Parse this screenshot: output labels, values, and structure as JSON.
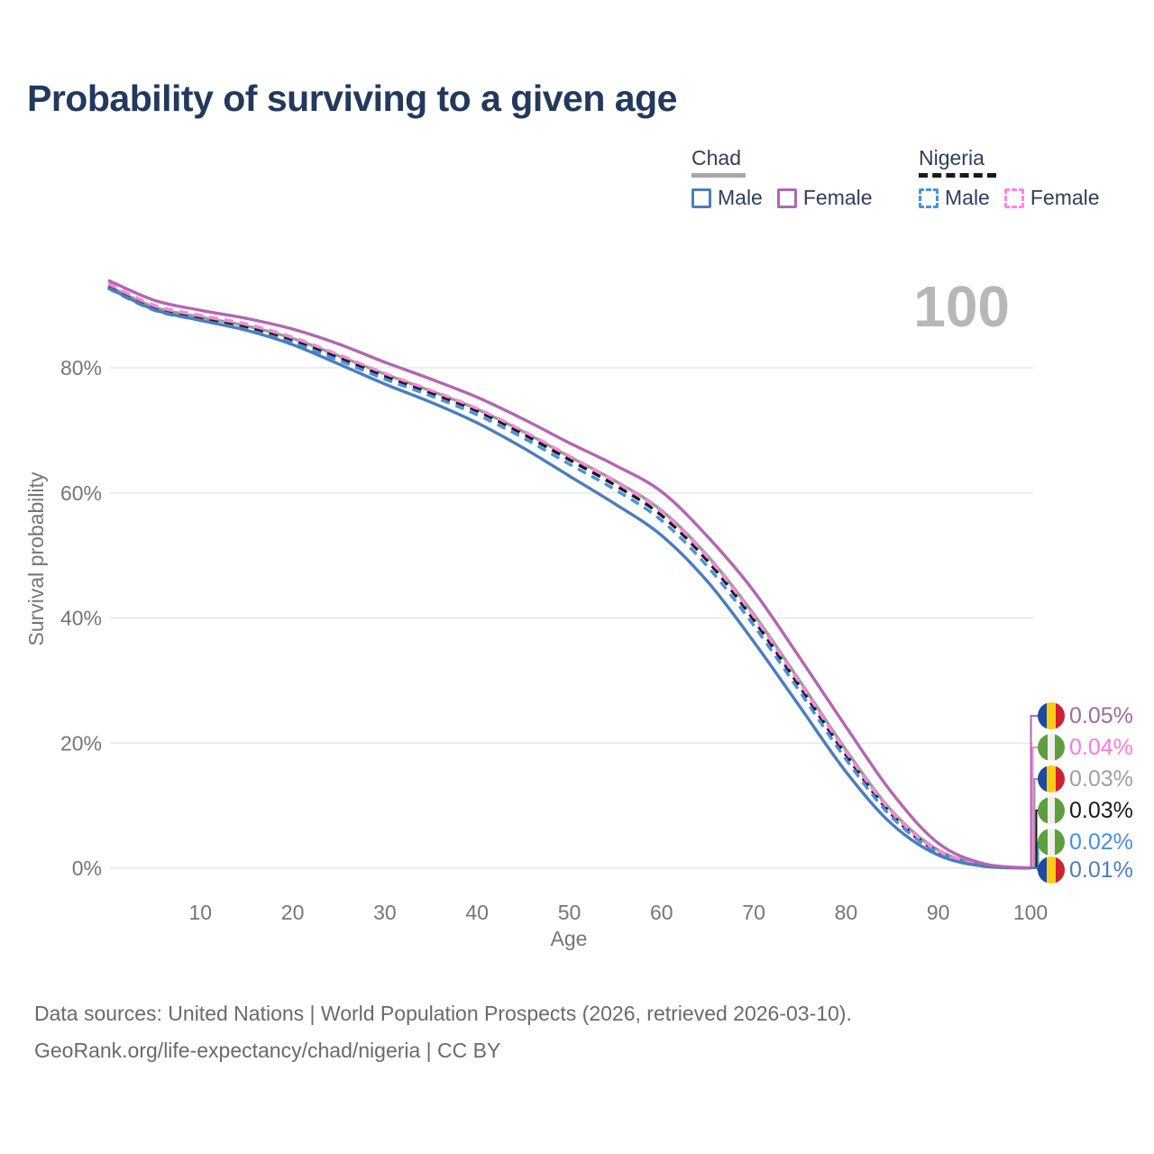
{
  "title": "Probability of surviving to a given age",
  "age_counter": "100",
  "legend": {
    "groups": [
      {
        "country": "Chad",
        "line_style": "solid",
        "underline_color": "#a8a8a8",
        "items": [
          {
            "label": "Male",
            "color": "#4a7dbf"
          },
          {
            "label": "Female",
            "color": "#b266b2"
          }
        ]
      },
      {
        "country": "Nigeria",
        "line_style": "dashed",
        "underline_color": "#1a1a1a",
        "items": [
          {
            "label": "Male",
            "color": "#4a90e2"
          },
          {
            "label": "Female",
            "color": "#ff85e0"
          }
        ]
      }
    ]
  },
  "footer": {
    "line1": "Data sources: United Nations | World Population Prospects (2026, retrieved 2026-03-10).",
    "line2": "GeoRank.org/life-expectancy/chad/nigeria | CC BY"
  },
  "flags": {
    "chad": [
      "#1b4a9e",
      "#f7ce17",
      "#d21f32"
    ],
    "nigeria": [
      "#5f9e3e",
      "#efefec",
      "#5f9e3e"
    ]
  },
  "chart_data": {
    "type": "line",
    "title": "Probability of surviving to a given age",
    "xlabel": "Age",
    "ylabel": "Survival probability",
    "xlim": [
      0,
      100
    ],
    "ylim": [
      0,
      100
    ],
    "grid": "horizontal",
    "legend_position": "top-right",
    "x_ticks": [
      10,
      20,
      30,
      40,
      50,
      60,
      70,
      80,
      90,
      100
    ],
    "y_ticks": [
      {
        "value": 0,
        "label": "0%"
      },
      {
        "value": 20,
        "label": "20%"
      },
      {
        "value": 40,
        "label": "40%"
      },
      {
        "value": 60,
        "label": "60%"
      },
      {
        "value": 80,
        "label": "80%"
      }
    ],
    "x": [
      0,
      5,
      10,
      15,
      20,
      25,
      30,
      35,
      40,
      45,
      50,
      55,
      60,
      65,
      70,
      75,
      80,
      85,
      90,
      95,
      100
    ],
    "series": [
      {
        "name": "Chad Female",
        "country": "Chad",
        "sex": "Female",
        "flag": "chad",
        "color": "#b266b2",
        "dash": "solid",
        "end_label": "0.05%",
        "label_color": "#a06ba0",
        "values": [
          94.0,
          90.8,
          89.2,
          87.9,
          86.2,
          83.8,
          80.9,
          78.2,
          75.3,
          71.8,
          68.0,
          64.4,
          60.2,
          53.0,
          44.3,
          33.6,
          22.6,
          12.0,
          4.0,
          0.7,
          0.05
        ]
      },
      {
        "name": "Nigeria Female",
        "country": "Nigeria",
        "sex": "Female",
        "flag": "nigeria",
        "color": "#ff85e0",
        "dash": "dashed",
        "end_label": "0.04%",
        "label_color": "#ff77e1",
        "values": [
          93.5,
          90.0,
          88.4,
          87.0,
          84.9,
          82.1,
          79.1,
          76.4,
          73.5,
          69.9,
          65.9,
          61.8,
          57.0,
          49.7,
          40.3,
          29.6,
          18.6,
          8.9,
          2.8,
          0.45,
          0.04
        ]
      },
      {
        "name": "Chad (both sexes)",
        "country": "Chad",
        "sex": "Both",
        "flag": "chad",
        "color": "#9b9b9b",
        "dash": "solid",
        "end_label": "0.03%",
        "label_color": "#a0a0a0",
        "values": [
          93.1,
          89.7,
          88.1,
          86.7,
          84.7,
          81.9,
          79.0,
          76.3,
          73.4,
          69.8,
          65.8,
          61.9,
          57.2,
          49.9,
          40.6,
          29.9,
          18.9,
          9.1,
          2.9,
          0.5,
          0.03
        ]
      },
      {
        "name": "Nigeria (both sexes)",
        "country": "Nigeria",
        "sex": "Both",
        "flag": "nigeria",
        "color": "#1a1a1a",
        "dash": "dashed",
        "end_label": "0.03%",
        "label_color": "#1a1a1a",
        "values": [
          92.9,
          89.4,
          87.8,
          86.4,
          84.3,
          81.6,
          78.7,
          76.0,
          73.1,
          69.4,
          65.3,
          61.2,
          56.4,
          49.1,
          39.7,
          29.0,
          18.1,
          8.5,
          2.6,
          0.4,
          0.03
        ]
      },
      {
        "name": "Nigeria Male",
        "country": "Nigeria",
        "sex": "Male",
        "flag": "nigeria",
        "color": "#4a90e2",
        "dash": "dashed",
        "end_label": "0.02%",
        "label_color": "#4b8ce8",
        "values": [
          92.7,
          89.2,
          87.6,
          86.1,
          84.0,
          81.2,
          78.2,
          75.5,
          72.5,
          68.8,
          64.6,
          60.5,
          55.6,
          48.2,
          38.8,
          28.2,
          17.4,
          8.1,
          2.5,
          0.35,
          0.02
        ]
      },
      {
        "name": "Chad Male",
        "country": "Chad",
        "sex": "Male",
        "flag": "chad",
        "color": "#4a7dbf",
        "dash": "solid",
        "end_label": "0.01%",
        "label_color": "#4f7cc0",
        "values": [
          92.8,
          89.3,
          87.6,
          86.0,
          83.7,
          80.6,
          77.4,
          74.5,
          71.2,
          67.2,
          62.7,
          58.2,
          53.2,
          45.8,
          36.2,
          25.8,
          15.4,
          7.0,
          2.1,
          0.3,
          0.01
        ]
      }
    ]
  }
}
